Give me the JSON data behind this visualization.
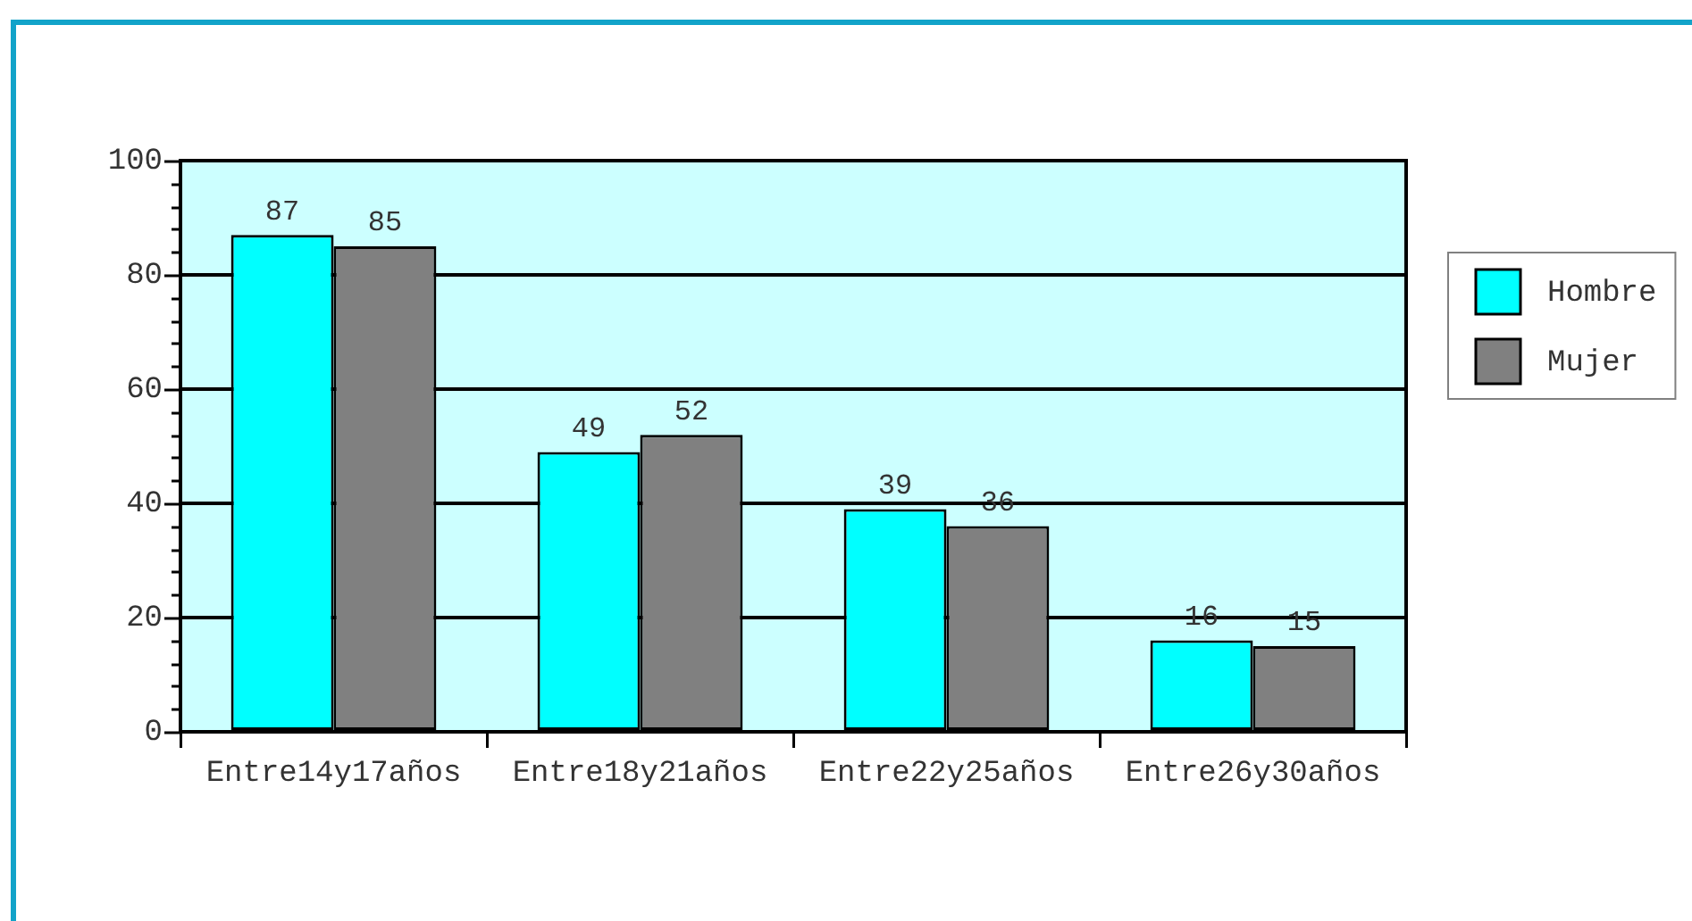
{
  "chart_data": {
    "type": "bar",
    "categories": [
      "Entre14y17años",
      "Entre18y21años",
      "Entre22y25años",
      "Entre26y30años"
    ],
    "series": [
      {
        "name": "Hombre",
        "color": "#00ffff",
        "values": [
          87,
          49,
          39,
          16
        ]
      },
      {
        "name": "Mujer",
        "color": "#808080",
        "values": [
          85,
          52,
          36,
          15
        ]
      }
    ],
    "ylim": [
      0,
      100
    ],
    "yticks": [
      0,
      {
        "value": 4,
        "label": null
      },
      {
        "value": 8,
        "label": null
      },
      {
        "value": 12,
        "label": null
      },
      {
        "value": 16,
        "label": null
      },
      20,
      {
        "value": 24,
        "label": null
      },
      {
        "value": 28,
        "label": null
      },
      {
        "value": 32,
        "label": null
      },
      {
        "value": 36,
        "label": null
      },
      40,
      {
        "value": 44,
        "label": null
      },
      {
        "value": 48,
        "label": null
      },
      {
        "value": 52,
        "label": null
      },
      {
        "value": 56,
        "label": null
      },
      60,
      {
        "value": 64,
        "label": null
      },
      {
        "value": 68,
        "label": null
      },
      {
        "value": 72,
        "label": null
      },
      {
        "value": 76,
        "label": null
      },
      80,
      {
        "value": 84,
        "label": null
      },
      {
        "value": 88,
        "label": null
      },
      {
        "value": 92,
        "label": null
      },
      {
        "value": 96,
        "label": null
      },
      100
    ],
    "grid": "y",
    "legend": "right",
    "data_labels": true
  }
}
